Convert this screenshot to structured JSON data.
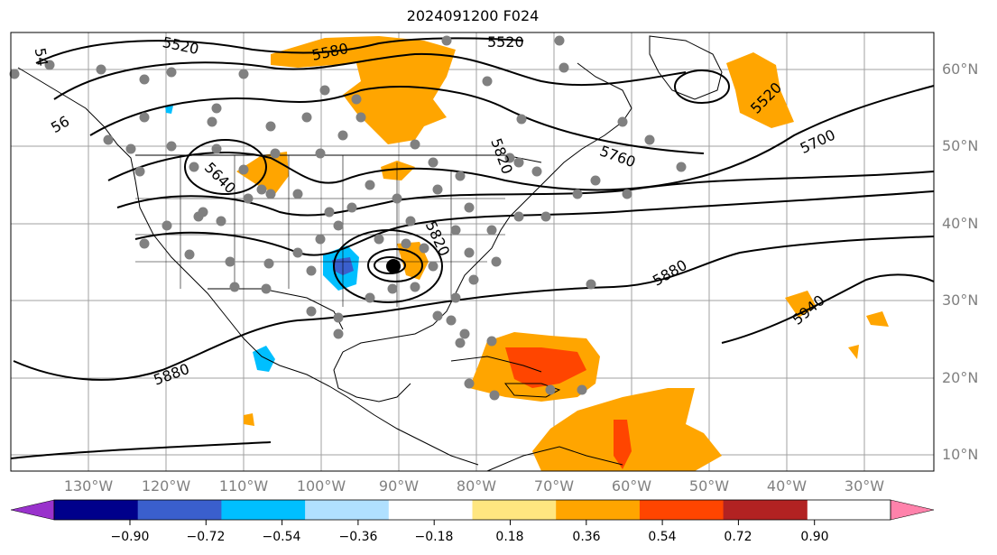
{
  "figure": {
    "title": "2024091200 F024"
  },
  "axes": {
    "lat_labels": [
      "60°N",
      "50°N",
      "40°N",
      "30°N",
      "20°N",
      "10°N"
    ],
    "lon_labels": [
      "130°W",
      "120°W",
      "110°W",
      "100°W",
      "90°W",
      "80°W",
      "70°W",
      "60°W",
      "50°W",
      "40°W",
      "30°W"
    ],
    "gridlines": true
  },
  "colorbar": {
    "orientation": "horizontal",
    "extend": "both",
    "tick_labels": [
      "−0.90",
      "−0.72",
      "−0.54",
      "−0.36",
      "−0.18",
      "0.18",
      "0.36",
      "0.54",
      "0.72",
      "0.90"
    ],
    "colors": [
      "#9932cc",
      "#00008b",
      "#3a5fcd",
      "#00bfff",
      "#b0e0ff",
      "#ffffff",
      "#ffe680",
      "#ffa500",
      "#ff4500",
      "#b22222",
      "#ff82ab"
    ]
  },
  "contour_labels": [
    "5520",
    "5580",
    "5520",
    "5520",
    "5700",
    "5760",
    "5820",
    "5640",
    "5820",
    "5880",
    "5880",
    "5940",
    "54",
    "56"
  ],
  "colors": {
    "contour": "#000000",
    "station_dot": "#808080",
    "coast": "#000000",
    "grid": "#a0a0a0"
  },
  "map_extent": {
    "lon_range": [
      -139,
      -20
    ],
    "lat_range": [
      8,
      65
    ]
  }
}
